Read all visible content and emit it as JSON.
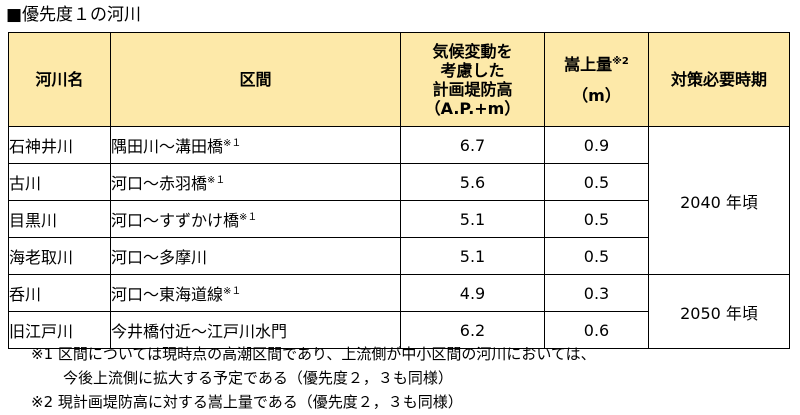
{
  "title": "■優先度１の河川",
  "table": {
    "headers": {
      "river": "河川名",
      "section": "区間",
      "embankment": [
        "気候変動を",
        "考慮した",
        "計画堤防高",
        "（A.P.+m）"
      ],
      "raise": "嵩上量",
      "raise_mark": "※2",
      "raise_unit": "（m）",
      "period": "対策必要時期"
    },
    "rows": [
      {
        "river": "石神井川",
        "section": "隅田川～溝田橋",
        "mark": "※１",
        "height": "6.7",
        "raise": "0.9"
      },
      {
        "river": "古川",
        "section": "河口～赤羽橋",
        "mark": "※１",
        "height": "5.6",
        "raise": "0.5"
      },
      {
        "river": "目黒川",
        "section": "河口～すずかけ橋",
        "mark": "※１",
        "height": "5.1",
        "raise": "0.5"
      },
      {
        "river": "海老取川",
        "section": "河口～多摩川",
        "mark": "",
        "height": "5.1",
        "raise": "0.5"
      },
      {
        "river": "呑川",
        "section": "河口～東海道線",
        "mark": "※１",
        "height": "4.9",
        "raise": "0.3"
      },
      {
        "river": "旧江戸川",
        "section": "今井橋付近～江戸川水門",
        "mark": "",
        "height": "6.2",
        "raise": "0.6"
      }
    ],
    "period_groups": [
      "2040 年頃",
      "2050 年頃"
    ]
  },
  "notes": {
    "note1_line1": "※1 区間については現時点の高潮区間であり、上流側が中小区間の河川においては、",
    "note1_line2": "今後上流側に拡大する予定である（優先度２，３も同様）",
    "note2": "※2 現計画堤防高に対する嵩上量である（優先度２，３も同様）"
  }
}
